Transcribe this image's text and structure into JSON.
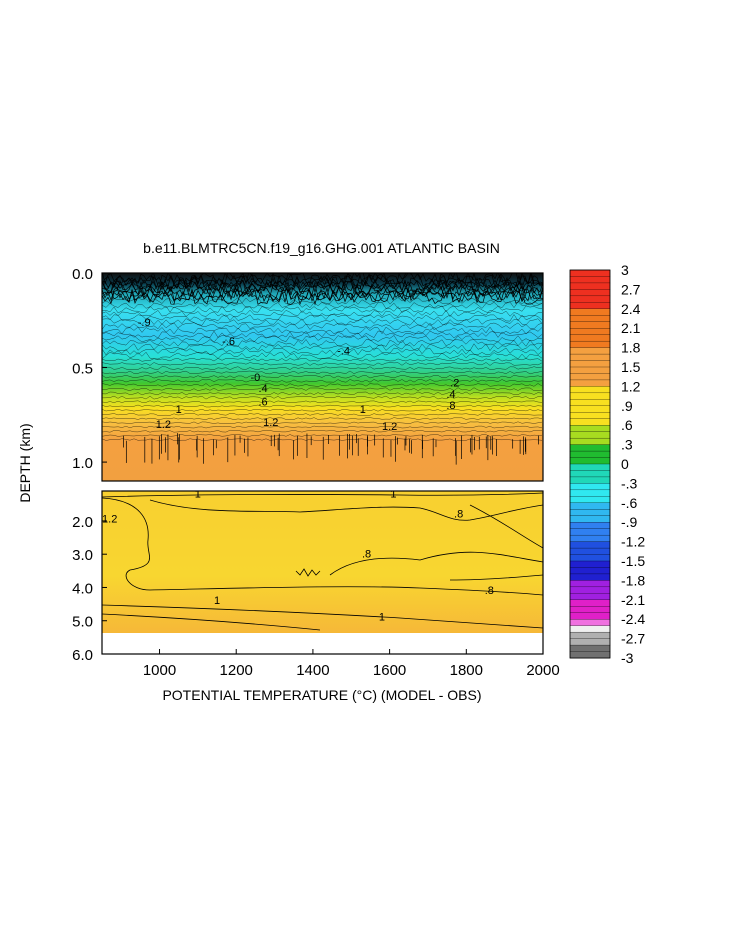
{
  "chart_data": {
    "type": "heatmap",
    "title": "b.e11.BLMTRC5CN.f19_g16.GHG.001 ATLANTIC BASIN",
    "xlabel": "POTENTIAL TEMPERATURE (°C) (MODEL - OBS)",
    "ylabel": "DEPTH (km)",
    "xlim": [
      850,
      2000
    ],
    "x_ticks": [
      "1000",
      "1200",
      "1400",
      "1600",
      "1800",
      "2000"
    ],
    "x_tick_values": [
      1000,
      1200,
      1400,
      1600,
      1800,
      2000
    ],
    "upper_panel": {
      "ylim": [
        0.0,
        1.1
      ],
      "y_ticks": [
        "0.0",
        "0.5",
        "1.0"
      ],
      "y_tick_values": [
        0.0,
        0.5,
        1.0
      ],
      "value_profile_by_depth": [
        {
          "depth": 0.0,
          "value": -3.0
        },
        {
          "depth": 0.05,
          "value": -2.2
        },
        {
          "depth": 0.1,
          "value": -1.4
        },
        {
          "depth": 0.18,
          "value": -0.9
        },
        {
          "depth": 0.3,
          "value": -0.6
        },
        {
          "depth": 0.42,
          "value": -0.2
        },
        {
          "depth": 0.5,
          "value": 0.3
        },
        {
          "depth": 0.6,
          "value": 0.7
        },
        {
          "depth": 0.7,
          "value": 1.0
        },
        {
          "depth": 0.8,
          "value": 1.2
        },
        {
          "depth": 0.95,
          "value": 1.3
        },
        {
          "depth": 1.1,
          "value": 1.3
        }
      ],
      "contour_labels": [
        {
          "x": 960,
          "depth": 0.28,
          "text": "-.9"
        },
        {
          "x": 1180,
          "depth": 0.38,
          "text": "-.6"
        },
        {
          "x": 1480,
          "depth": 0.43,
          "text": "-.4"
        },
        {
          "x": 1250,
          "depth": 0.57,
          "text": "-0"
        },
        {
          "x": 1270,
          "depth": 0.63,
          "text": ".4"
        },
        {
          "x": 1270,
          "depth": 0.7,
          "text": ".6"
        },
        {
          "x": 1770,
          "depth": 0.6,
          "text": ".2"
        },
        {
          "x": 1760,
          "depth": 0.66,
          "text": ".4"
        },
        {
          "x": 1760,
          "depth": 0.72,
          "text": ".8"
        },
        {
          "x": 1050,
          "depth": 0.74,
          "text": "1"
        },
        {
          "x": 1530,
          "depth": 0.74,
          "text": "1"
        },
        {
          "x": 1010,
          "depth": 0.82,
          "text": "1.2"
        },
        {
          "x": 1290,
          "depth": 0.81,
          "text": "1.2"
        },
        {
          "x": 1600,
          "depth": 0.83,
          "text": "1.2"
        }
      ]
    },
    "lower_panel": {
      "ylim": [
        1.1,
        6.0
      ],
      "y_ticks": [
        "2.0",
        "3.0",
        "4.0",
        "5.0",
        "6.0"
      ],
      "y_tick_values": [
        2.0,
        3.0,
        4.0,
        5.0,
        6.0
      ],
      "data_bottom_depth": 5.4,
      "contour_labels": [
        {
          "x": 1150,
          "depth": 4.5,
          "text": "1"
        },
        {
          "x": 1580,
          "depth": 5.0,
          "text": "1"
        },
        {
          "x": 1540,
          "depth": 3.1,
          "text": ".8"
        },
        {
          "x": 1860,
          "depth": 4.2,
          "text": ".8"
        },
        {
          "x": 1780,
          "depth": 1.9,
          "text": ".8"
        },
        {
          "x": 870,
          "depth": 2.05,
          "text": "1.2"
        },
        {
          "x": 1100,
          "depth": 1.3,
          "text": "1"
        },
        {
          "x": 1610,
          "depth": 1.3,
          "text": "1"
        }
      ]
    },
    "colorbar": {
      "range": [
        -3,
        3
      ],
      "step": 0.1,
      "labels": [
        "3",
        "2.7",
        "2.4",
        "2.1",
        "1.8",
        "1.5",
        "1.2",
        ".9",
        ".6",
        ".3",
        "0",
        "-.3",
        "-.6",
        "-.9",
        "-1.2",
        "-1.5",
        "-1.8",
        "-2.1",
        "-2.4",
        "-2.7",
        "-3"
      ],
      "colors": {
        "3": "#d01818",
        "2.4": "#ee3020",
        "1.8": "#f07a20",
        "1.2": "#f4a040",
        "0.6": "#f8e020",
        "0.3": "#a8dc20",
        "0": "#20bc30",
        "-0.3": "#20d8b8",
        "-0.6": "#30e8f0",
        "-0.9": "#30b8f0",
        "-1.2": "#3080f0",
        "-1.5": "#2050e0",
        "-1.8": "#2020d0",
        "-2.1": "#a020e0",
        "-2.4": "#e020c8",
        "-2.5": "#f070e0",
        "-2.6": "#f0f0f0",
        "-2.8": "#b0b0b0",
        "-3": "#707070"
      }
    }
  }
}
